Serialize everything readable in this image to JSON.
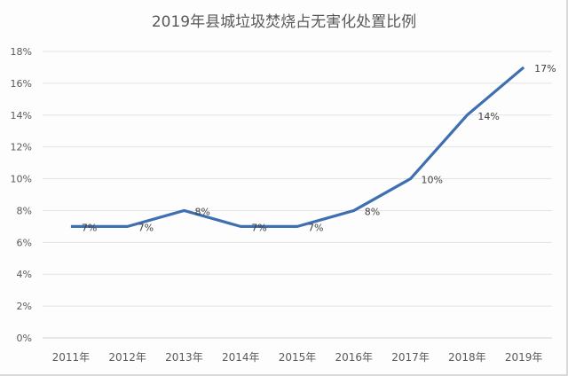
{
  "chart_data": {
    "type": "line",
    "title": "2019年县城垃圾焚烧占无害化处置比例",
    "xlabel": "",
    "ylabel": "",
    "categories": [
      "2011年",
      "2012年",
      "2013年",
      "2014年",
      "2015年",
      "2016年",
      "2017年",
      "2018年",
      "2019年"
    ],
    "series": [
      {
        "name": "焚烧占比",
        "values": [
          7,
          7,
          8,
          7,
          7,
          8,
          10,
          14,
          17
        ],
        "labels": [
          "7%",
          "7%",
          "8%",
          "7%",
          "7%",
          "8%",
          "10%",
          "14%",
          "17%"
        ],
        "color": "#3e6fb0"
      }
    ],
    "ylim": [
      0,
      18
    ],
    "yticks": [
      "0%",
      "2%",
      "4%",
      "6%",
      "8%",
      "10%",
      "12%",
      "14%",
      "16%",
      "18%"
    ],
    "grid": true,
    "legend": "none"
  }
}
